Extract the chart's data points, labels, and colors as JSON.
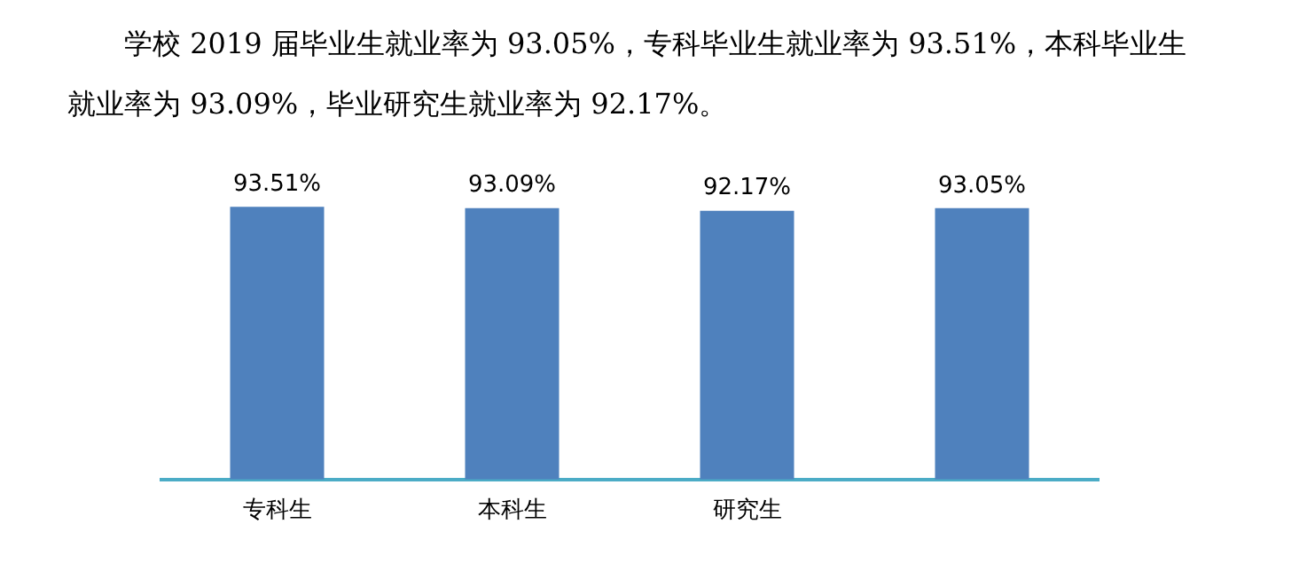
{
  "chart_data": {
    "type": "bar",
    "title": "学校 2019 届毕业生就业率为 93.05%，专科毕业生就业率为 93.51%，本科毕业生就业率为 93.09%，毕业研究生就业率为 92.17%。",
    "categories": [
      "专科生",
      "本科生",
      "研究生",
      null
    ],
    "values": [
      93.51,
      93.09,
      92.17,
      93.05
    ],
    "value_labels": [
      "93.51%",
      "93.09%",
      "92.17%",
      "93.05%"
    ],
    "color": "#4f81bd",
    "grid": false,
    "legend": false
  }
}
